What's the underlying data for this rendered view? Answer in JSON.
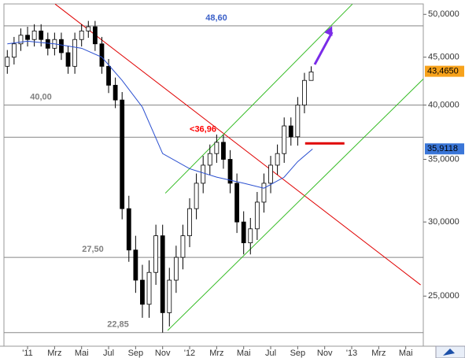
{
  "chart_data": {
    "type": "candlestick",
    "log_scale": true,
    "xlim": [
      -1.75,
      29.3
    ],
    "ylim": [
      22.1,
      51.3
    ],
    "xticks": [
      {
        "value": 0,
        "label": "'11"
      },
      {
        "value": 2,
        "label": "Mrz"
      },
      {
        "value": 4,
        "label": "Mai"
      },
      {
        "value": 6,
        "label": "Jul"
      },
      {
        "value": 8,
        "label": "Sep"
      },
      {
        "value": 10,
        "label": "Nov"
      },
      {
        "value": 12,
        "label": "'12"
      },
      {
        "value": 14,
        "label": "Mrz"
      },
      {
        "value": 16,
        "label": "Mai"
      },
      {
        "value": 18,
        "label": "Jul"
      },
      {
        "value": 20,
        "label": "Sep"
      },
      {
        "value": 22,
        "label": "Nov"
      },
      {
        "value": 24,
        "label": "'13"
      },
      {
        "value": 26,
        "label": "Mrz"
      },
      {
        "value": 28,
        "label": "Mai"
      }
    ],
    "yticks": [
      {
        "value": 25,
        "label": "25,0000"
      },
      {
        "value": 30,
        "label": "30,0000"
      },
      {
        "value": 35,
        "label": "35,0000"
      },
      {
        "value": 40,
        "label": "40,0000"
      },
      {
        "value": 45,
        "label": "45,0000"
      },
      {
        "value": 50,
        "label": "50,0000"
      }
    ],
    "x": [
      -1.5,
      -1,
      -0.5,
      0,
      0.5,
      1,
      1.5,
      2,
      2.5,
      3,
      3.5,
      4,
      4.5,
      5,
      5.5,
      6,
      6.5,
      7,
      7.5,
      8,
      8.5,
      9,
      9.5,
      10,
      10.5,
      11,
      11.5,
      12,
      12.5,
      13,
      13.5,
      14,
      14.5,
      15,
      15.5,
      16,
      16.5,
      17,
      17.5,
      18,
      18.5,
      19,
      19.5,
      20,
      20.5,
      21
    ],
    "open": [
      44,
      45,
      46.5,
      47.5,
      47,
      48,
      47,
      46,
      47,
      45.5,
      44,
      47,
      48,
      48.5,
      46.5,
      44,
      42,
      40.5,
      31,
      28,
      26,
      24.5,
      26.5,
      29,
      24,
      26,
      27.5,
      29,
      31,
      33,
      34.5,
      35.5,
      36.5,
      35,
      33,
      30,
      28.5,
      29.5,
      31.5,
      33,
      34.5,
      35.5,
      38,
      37,
      40,
      42.5
    ],
    "high": [
      45.8,
      47.3,
      48.3,
      48.5,
      48.8,
      48.8,
      47.8,
      47.8,
      47.8,
      46.3,
      47.8,
      48.8,
      49.2,
      49.2,
      47.3,
      44.8,
      42.8,
      41.3,
      32,
      29,
      27,
      27.3,
      29.8,
      29.8,
      26.8,
      28.3,
      29.8,
      31.8,
      33.8,
      35.3,
      36.3,
      37.2,
      37.2,
      35.8,
      33.8,
      30.8,
      30.3,
      32.3,
      33.8,
      35.3,
      36.3,
      38.8,
      38.8,
      40.8,
      43.3,
      44
    ],
    "low": [
      43.2,
      44.2,
      45.7,
      46.2,
      46.2,
      46.2,
      45.2,
      45.2,
      44.7,
      43.2,
      43.2,
      46.2,
      47.2,
      45.7,
      43.2,
      41.2,
      39.7,
      30.2,
      27.2,
      25.2,
      23.7,
      23.7,
      25.7,
      22.85,
      23.2,
      25.2,
      26.7,
      28.2,
      30.2,
      32.2,
      33.7,
      34.7,
      34.2,
      32.2,
      29.2,
      27.7,
      27.7,
      28.7,
      30.7,
      32.2,
      33.7,
      34.7,
      36.2,
      36.2,
      39.2,
      42.6
    ],
    "close": [
      45,
      46.5,
      47.5,
      47,
      48,
      47,
      46,
      47,
      45.5,
      44,
      47,
      48,
      48.5,
      46.5,
      44,
      42,
      40.5,
      31,
      28,
      26,
      24.5,
      26.5,
      29,
      24,
      26,
      27.5,
      29,
      31,
      33,
      34.5,
      35.5,
      36.5,
      35,
      33,
      30,
      28.5,
      29.5,
      31.5,
      33,
      34.5,
      35.5,
      38,
      37,
      40,
      42.5,
      43.4
    ],
    "moving_average": {
      "color": "#2a4fd0",
      "x": [
        -1.5,
        0,
        2,
        4,
        5.5,
        7,
        8.5,
        10,
        12,
        14,
        16,
        17.5,
        19,
        20,
        21.1
      ],
      "values": [
        46.5,
        46.8,
        46.5,
        46,
        45,
        42.5,
        39.8,
        35.5,
        34.2,
        33.5,
        33,
        32.6,
        33.5,
        34.8,
        35.9
      ]
    },
    "levels": [
      {
        "value": 48.6,
        "label": "48,60",
        "color": "#3a5fc8"
      },
      {
        "value": 40,
        "label": "40,00",
        "color": "#808080"
      },
      {
        "value": 36.96,
        "label": "<36,96",
        "color": "#ff0000"
      },
      {
        "value": 27.5,
        "label": "27,50",
        "color": "#808080"
      },
      {
        "value": 22.85,
        "label": "22,85",
        "color": "#808080"
      }
    ],
    "trendlines": [
      {
        "color": "#e00000",
        "x": [
          2.04,
          29.1
        ],
        "values": [
          51.28,
          25.7
        ]
      },
      {
        "color": "#33bb22",
        "x": [
          10.2,
          24.05
        ],
        "values": [
          32.2,
          51.28
        ]
      },
      {
        "color": "#33bb22",
        "x": [
          10.37,
          29.3
        ],
        "values": [
          22.97,
          42.65
        ]
      },
      {
        "color": "#e00000",
        "x": [
          20.55,
          23.46
        ],
        "values": [
          36.4,
          36.4
        ]
      }
    ],
    "arrow": {
      "color": "#7a2be8",
      "x": [
        21.26,
        22.55
      ],
      "values": [
        44.2,
        48.6
      ]
    },
    "price_markers": [
      {
        "value": 43.465,
        "label": "43,4650",
        "color": "#f7a21b"
      },
      {
        "value": 35.9118,
        "label": "35,9118",
        "color": "#3a76d8"
      }
    ]
  }
}
